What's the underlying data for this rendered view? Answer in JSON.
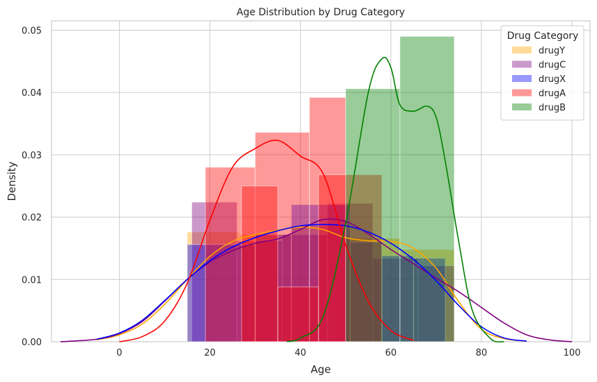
{
  "chart_data": {
    "type": "histogram",
    "title": "Age Distribution by Drug Category",
    "xlabel": "Age",
    "ylabel": "Density",
    "xlim": [
      -15,
      104
    ],
    "ylim": [
      0,
      0.0515
    ],
    "xticks": [
      0,
      20,
      40,
      60,
      80,
      100
    ],
    "yticks": [
      0.0,
      0.01,
      0.02,
      0.03,
      0.04,
      0.05
    ],
    "xtick_labels": [
      "0",
      "20",
      "40",
      "60",
      "80",
      "100"
    ],
    "ytick_labels": [
      "0.00",
      "0.01",
      "0.02",
      "0.03",
      "0.04",
      "0.05"
    ],
    "grid": true,
    "legend": {
      "title": "Drug Category",
      "position": "top-right"
    },
    "series": [
      {
        "name": "drugY",
        "color": "#FFA500",
        "bin_edges": [
          15,
          26.5,
          38,
          50,
          62,
          74
        ],
        "densities": [
          0.0176,
          0.0172,
          0.0186,
          0.0166,
          0.0148
        ],
        "kde_x": [
          -5,
          0,
          5,
          10,
          15,
          20,
          25,
          30,
          35,
          40,
          45,
          50,
          55,
          60,
          65,
          70,
          75,
          80,
          85,
          90
        ],
        "kde_y": [
          0.0003,
          0.0011,
          0.0028,
          0.006,
          0.01,
          0.0137,
          0.0161,
          0.0172,
          0.0179,
          0.0184,
          0.018,
          0.0167,
          0.0162,
          0.0161,
          0.015,
          0.0118,
          0.0064,
          0.002,
          0.0005,
          0.0001
        ]
      },
      {
        "name": "drugC",
        "color": "#800080",
        "bin_edges": [
          16,
          26,
          36,
          46,
          56,
          66,
          74
        ],
        "densities": [
          0.0224,
          0.0162,
          0.0172,
          0.0222,
          0.0134,
          0.0122
        ],
        "kde_x": [
          -13,
          -5,
          0,
          5,
          10,
          15,
          20,
          25,
          30,
          35,
          40,
          45,
          50,
          55,
          60,
          65,
          70,
          75,
          80,
          85,
          90,
          95,
          100
        ],
        "kde_y": [
          0.0,
          0.0004,
          0.0013,
          0.0032,
          0.0065,
          0.01,
          0.0128,
          0.0146,
          0.0158,
          0.0165,
          0.018,
          0.0196,
          0.0193,
          0.0173,
          0.0148,
          0.0125,
          0.0102,
          0.008,
          0.0055,
          0.003,
          0.0011,
          0.0003,
          0.0
        ]
      },
      {
        "name": "drugX",
        "color": "#0000FF",
        "bin_edges": [
          15,
          30,
          38,
          51,
          58,
          65,
          72
        ],
        "densities": [
          0.0156,
          0.0172,
          0.022,
          0.016,
          0.0138,
          0.0134
        ],
        "kde_x": [
          -5,
          0,
          5,
          10,
          15,
          20,
          25,
          30,
          35,
          40,
          45,
          50,
          55,
          60,
          65,
          70,
          75,
          80,
          85,
          90
        ],
        "kde_y": [
          0.0004,
          0.0014,
          0.0034,
          0.0066,
          0.01,
          0.013,
          0.0152,
          0.0167,
          0.0178,
          0.0186,
          0.0188,
          0.0186,
          0.0176,
          0.0158,
          0.0132,
          0.0098,
          0.0058,
          0.0024,
          0.0006,
          0.0001
        ]
      },
      {
        "name": "drugA",
        "color": "#FF0000",
        "bin_edges": [
          19,
          30,
          42,
          50
        ],
        "densities": [
          0.028,
          0.0336,
          0.0392
        ],
        "extra_bins": {
          "bin_edges": [
            27,
            35,
            44,
            58
          ],
          "densities": [
            0.025,
            0.0088,
            0.0268
          ]
        },
        "kde_x": [
          0,
          5,
          10,
          15,
          20,
          25,
          30,
          35,
          40,
          45,
          50,
          55,
          60,
          65
        ],
        "kde_y": [
          0.0,
          0.0008,
          0.0033,
          0.0094,
          0.0195,
          0.028,
          0.031,
          0.0323,
          0.0298,
          0.027,
          0.0155,
          0.0065,
          0.0018,
          0.0002
        ]
      },
      {
        "name": "drugB",
        "color": "#008000",
        "bin_edges": [
          50,
          62,
          74
        ],
        "densities": [
          0.0406,
          0.049
        ],
        "kde_x": [
          37,
          40,
          45,
          50,
          55,
          58,
          60,
          62,
          65,
          68,
          70,
          72,
          75,
          78,
          82,
          85
        ],
        "kde_y": [
          0.0,
          0.0006,
          0.004,
          0.019,
          0.04,
          0.0454,
          0.044,
          0.038,
          0.037,
          0.0378,
          0.036,
          0.029,
          0.016,
          0.005,
          0.0005,
          0.0
        ]
      }
    ]
  }
}
